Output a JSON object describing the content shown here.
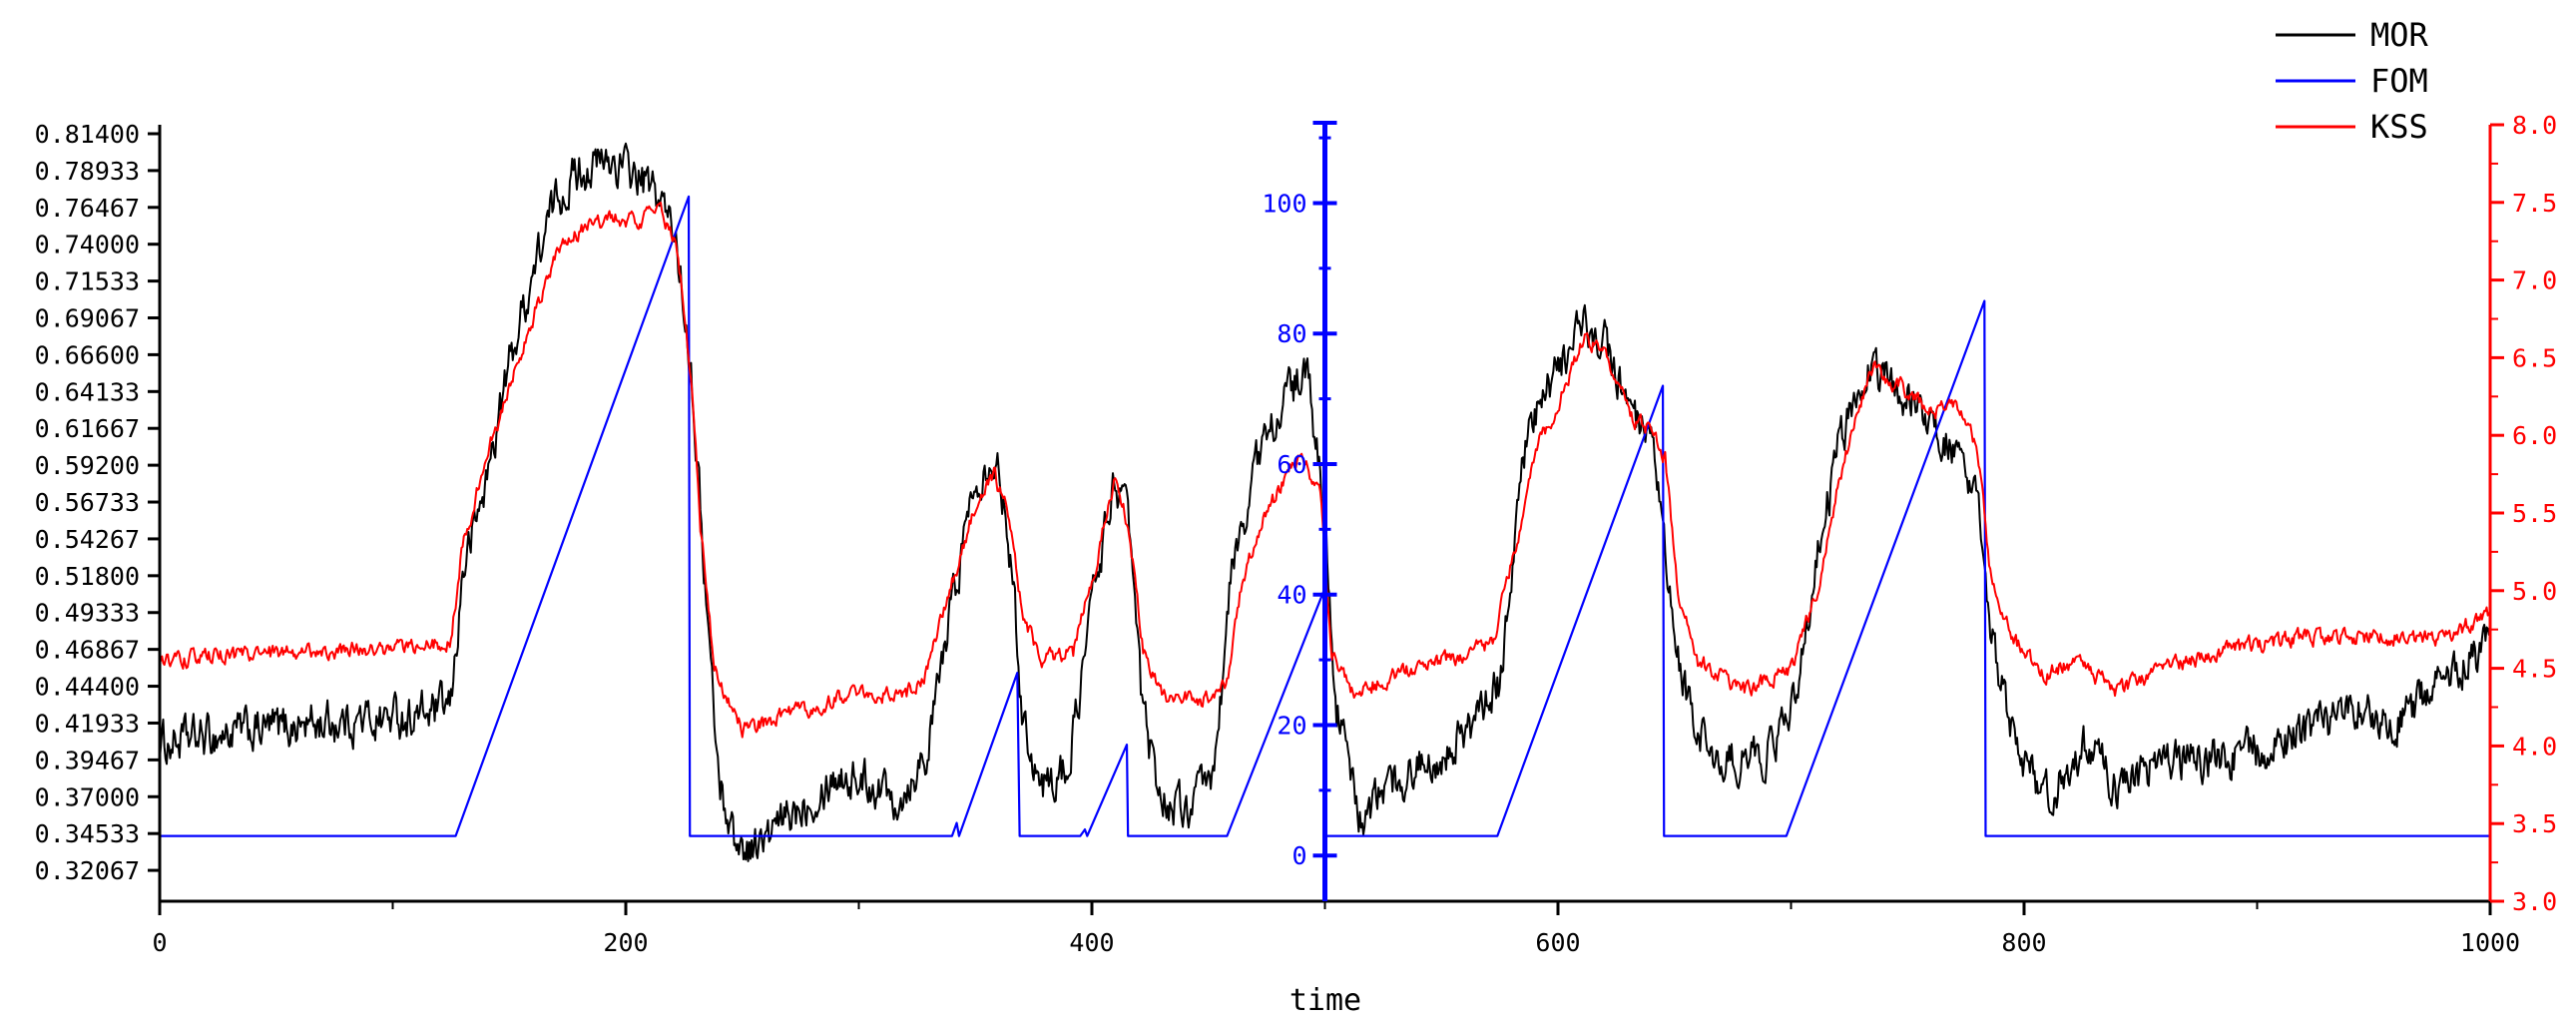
{
  "chart_data": {
    "type": "line",
    "title": "",
    "xlabel": "time",
    "xlim": [
      0,
      1000
    ],
    "x_ticks": [
      0,
      200,
      400,
      600,
      800,
      1000
    ],
    "x_tick_labels": [
      "0",
      "200",
      "400",
      "600",
      "800",
      "1000"
    ],
    "grid": false,
    "legend_position": "top-right",
    "axes": {
      "left": {
        "color": "#000000",
        "ylim": [
          0.3,
          0.82
        ],
        "ticks": [
          0.32067,
          0.34533,
          0.37,
          0.39467,
          0.41933,
          0.444,
          0.46867,
          0.49333,
          0.518,
          0.54267,
          0.56733,
          0.592,
          0.61667,
          0.64133,
          0.666,
          0.69067,
          0.71533,
          0.74,
          0.76467,
          0.78933,
          0.814
        ],
        "tick_labels": [
          "0.32067",
          "0.34533",
          "0.37000",
          "0.39467",
          "0.41933",
          "0.44400",
          "0.46867",
          "0.49333",
          "0.51800",
          "0.54267",
          "0.56733",
          "0.59200",
          "0.61667",
          "0.64133",
          "0.66600",
          "0.69067",
          "0.71533",
          "0.74000",
          "0.76467",
          "0.78933",
          "0.81400"
        ]
      },
      "middle": {
        "color": "#0000ff",
        "at_x": 500,
        "ylim": [
          -7,
          112
        ],
        "major_ticks": [
          0,
          20,
          40,
          60,
          80,
          100
        ],
        "tick_labels": [
          "0",
          "20",
          "40",
          "60",
          "80",
          "100"
        ],
        "minor_ticks": [
          10,
          30,
          50,
          70,
          90,
          110
        ]
      },
      "right": {
        "color": "#ff0000",
        "ylim": [
          3.0,
          8.0
        ],
        "ticks": [
          3.0,
          3.5,
          4.0,
          4.5,
          5.0,
          5.5,
          6.0,
          6.5,
          7.0,
          7.5,
          8.0
        ],
        "tick_labels": [
          "3.0",
          "3.5",
          "4.0",
          "4.5",
          "5.0",
          "5.5",
          "6.0",
          "6.5",
          "7.0",
          "7.5",
          "8.0"
        ]
      }
    },
    "series": [
      {
        "name": "MOR",
        "axis": "left",
        "color": "#000000",
        "noise": 0.014,
        "points": [
          [
            0,
            0.405
          ],
          [
            30,
            0.412
          ],
          [
            60,
            0.418
          ],
          [
            90,
            0.422
          ],
          [
            115,
            0.425
          ],
          [
            125,
            0.43
          ],
          [
            130,
            0.52
          ],
          [
            140,
            0.58
          ],
          [
            150,
            0.66
          ],
          [
            160,
            0.72
          ],
          [
            170,
            0.77
          ],
          [
            180,
            0.79
          ],
          [
            195,
            0.795
          ],
          [
            205,
            0.785
          ],
          [
            215,
            0.77
          ],
          [
            222,
            0.74
          ],
          [
            228,
            0.66
          ],
          [
            235,
            0.49
          ],
          [
            240,
            0.38
          ],
          [
            248,
            0.335
          ],
          [
            260,
            0.34
          ],
          [
            275,
            0.365
          ],
          [
            290,
            0.385
          ],
          [
            305,
            0.38
          ],
          [
            318,
            0.37
          ],
          [
            330,
            0.405
          ],
          [
            340,
            0.5
          ],
          [
            350,
            0.585
          ],
          [
            358,
            0.6
          ],
          [
            364,
            0.555
          ],
          [
            370,
            0.43
          ],
          [
            378,
            0.375
          ],
          [
            390,
            0.39
          ],
          [
            400,
            0.5
          ],
          [
            410,
            0.585
          ],
          [
            416,
            0.55
          ],
          [
            422,
            0.42
          ],
          [
            430,
            0.37
          ],
          [
            440,
            0.36
          ],
          [
            452,
            0.38
          ],
          [
            460,
            0.52
          ],
          [
            470,
            0.59
          ],
          [
            480,
            0.63
          ],
          [
            492,
            0.655
          ],
          [
            500,
            0.56
          ],
          [
            505,
            0.43
          ],
          [
            515,
            0.355
          ],
          [
            530,
            0.38
          ],
          [
            550,
            0.4
          ],
          [
            565,
            0.42
          ],
          [
            575,
            0.445
          ],
          [
            585,
            0.6
          ],
          [
            595,
            0.64
          ],
          [
            610,
            0.685
          ],
          [
            620,
            0.675
          ],
          [
            630,
            0.63
          ],
          [
            640,
            0.6
          ],
          [
            645,
            0.55
          ],
          [
            650,
            0.47
          ],
          [
            658,
            0.42
          ],
          [
            670,
            0.39
          ],
          [
            690,
            0.4
          ],
          [
            700,
            0.425
          ],
          [
            710,
            0.52
          ],
          [
            720,
            0.6
          ],
          [
            732,
            0.66
          ],
          [
            745,
            0.645
          ],
          [
            758,
            0.625
          ],
          [
            770,
            0.6
          ],
          [
            780,
            0.56
          ],
          [
            786,
            0.48
          ],
          [
            792,
            0.43
          ],
          [
            800,
            0.39
          ],
          [
            812,
            0.37
          ],
          [
            825,
            0.405
          ],
          [
            842,
            0.375
          ],
          [
            860,
            0.395
          ],
          [
            880,
            0.395
          ],
          [
            900,
            0.4
          ],
          [
            920,
            0.41
          ],
          [
            940,
            0.43
          ],
          [
            960,
            0.42
          ],
          [
            980,
            0.45
          ],
          [
            1000,
            0.47
          ]
        ]
      },
      {
        "name": "FOM",
        "axis": "middle",
        "color": "#0000ff",
        "noise": 0,
        "points": [
          [
            0,
            3
          ],
          [
            127,
            3
          ],
          [
            227,
            101
          ],
          [
            227.5,
            3
          ],
          [
            340,
            3
          ],
          [
            342,
            5
          ],
          [
            343,
            3
          ],
          [
            368,
            28
          ],
          [
            369,
            3
          ],
          [
            395,
            3
          ],
          [
            397,
            4
          ],
          [
            398,
            3
          ],
          [
            415,
            17
          ],
          [
            415.5,
            3
          ],
          [
            458,
            3
          ],
          [
            500,
            41
          ],
          [
            500.5,
            3
          ],
          [
            574,
            3
          ],
          [
            645,
            72
          ],
          [
            645.5,
            3
          ],
          [
            698,
            3
          ],
          [
            783,
            85
          ],
          [
            783.5,
            3
          ],
          [
            1000,
            3
          ]
        ]
      },
      {
        "name": "KSS",
        "axis": "right",
        "color": "#ff0000",
        "noise": 0.05,
        "points": [
          [
            0,
            4.55
          ],
          [
            30,
            4.58
          ],
          [
            60,
            4.6
          ],
          [
            90,
            4.63
          ],
          [
            115,
            4.64
          ],
          [
            125,
            4.68
          ],
          [
            130,
            5.3
          ],
          [
            140,
            5.85
          ],
          [
            150,
            6.3
          ],
          [
            160,
            6.75
          ],
          [
            170,
            7.15
          ],
          [
            182,
            7.35
          ],
          [
            195,
            7.4
          ],
          [
            205,
            7.38
          ],
          [
            215,
            7.45
          ],
          [
            222,
            7.2
          ],
          [
            228,
            6.4
          ],
          [
            232,
            5.4
          ],
          [
            238,
            4.5
          ],
          [
            250,
            4.1
          ],
          [
            270,
            4.2
          ],
          [
            290,
            4.3
          ],
          [
            305,
            4.35
          ],
          [
            318,
            4.3
          ],
          [
            328,
            4.45
          ],
          [
            338,
            4.95
          ],
          [
            350,
            5.55
          ],
          [
            358,
            5.75
          ],
          [
            364,
            5.5
          ],
          [
            370,
            4.85
          ],
          [
            378,
            4.55
          ],
          [
            392,
            4.6
          ],
          [
            402,
            5.2
          ],
          [
            410,
            5.75
          ],
          [
            416,
            5.4
          ],
          [
            422,
            4.6
          ],
          [
            432,
            4.3
          ],
          [
            450,
            4.3
          ],
          [
            458,
            4.4
          ],
          [
            465,
            5.1
          ],
          [
            475,
            5.5
          ],
          [
            490,
            5.9
          ],
          [
            498,
            5.6
          ],
          [
            503,
            4.6
          ],
          [
            512,
            4.35
          ],
          [
            530,
            4.45
          ],
          [
            550,
            4.55
          ],
          [
            572,
            4.65
          ],
          [
            582,
            5.3
          ],
          [
            590,
            5.9
          ],
          [
            600,
            6.2
          ],
          [
            612,
            6.65
          ],
          [
            620,
            6.5
          ],
          [
            632,
            6.1
          ],
          [
            640,
            6.05
          ],
          [
            646,
            5.85
          ],
          [
            652,
            4.95
          ],
          [
            660,
            4.55
          ],
          [
            680,
            4.35
          ],
          [
            700,
            4.5
          ],
          [
            712,
            5.05
          ],
          [
            722,
            5.8
          ],
          [
            735,
            6.45
          ],
          [
            748,
            6.3
          ],
          [
            760,
            6.15
          ],
          [
            772,
            6.2
          ],
          [
            780,
            5.9
          ],
          [
            786,
            5.05
          ],
          [
            795,
            4.7
          ],
          [
            808,
            4.45
          ],
          [
            822,
            4.55
          ],
          [
            840,
            4.35
          ],
          [
            860,
            4.5
          ],
          [
            880,
            4.6
          ],
          [
            900,
            4.65
          ],
          [
            920,
            4.7
          ],
          [
            940,
            4.7
          ],
          [
            960,
            4.7
          ],
          [
            980,
            4.7
          ],
          [
            1000,
            4.85
          ]
        ]
      }
    ]
  }
}
